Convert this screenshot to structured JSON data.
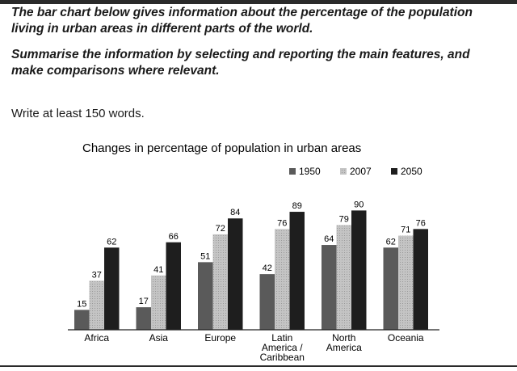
{
  "task": {
    "paragraph_1": "The bar chart below gives information about the percentage of the population living in urban areas in different parts of the world.",
    "paragraph_2": "Summarise the information by selecting and reporting the main features, and make comparisons where relevant."
  },
  "instruction": "Write at least 150 words.",
  "chart_data": {
    "type": "bar",
    "title": "Changes in percentage of population in urban areas",
    "xlabel": "",
    "ylabel": "",
    "ylim": [
      0,
      100
    ],
    "grid": false,
    "legend_position": "top-right",
    "categories": [
      [
        "Africa"
      ],
      [
        "Asia"
      ],
      [
        "Europe"
      ],
      [
        "Latin",
        "America /",
        "Caribbean"
      ],
      [
        "North",
        "America"
      ],
      [
        "Oceania"
      ]
    ],
    "series": [
      {
        "name": "1950",
        "values": [
          15,
          17,
          51,
          42,
          64,
          62
        ],
        "color": "#5a5a5a"
      },
      {
        "name": "2007",
        "values": [
          37,
          41,
          72,
          76,
          79,
          71
        ],
        "color": "#c4c4c4"
      },
      {
        "name": "2050",
        "values": [
          62,
          66,
          84,
          89,
          90,
          76
        ],
        "color": "#1e1e1e"
      }
    ]
  }
}
